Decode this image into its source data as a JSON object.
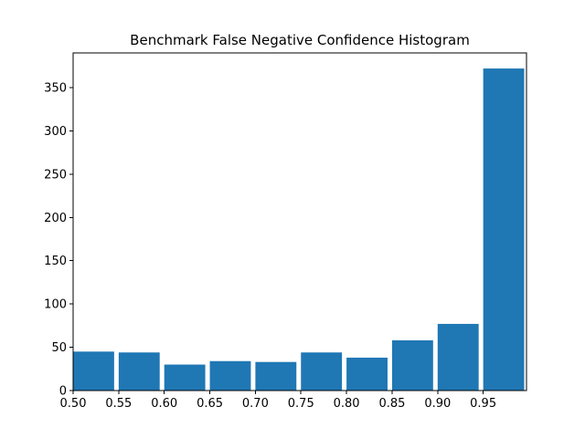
{
  "chart_data": {
    "type": "bar",
    "title": "Benchmark False Negative Confidence Histogram",
    "xlabel": "",
    "ylabel": "",
    "bins": [
      {
        "start": 0.5,
        "end": 0.55,
        "value": 45
      },
      {
        "start": 0.55,
        "end": 0.6,
        "value": 44
      },
      {
        "start": 0.6,
        "end": 0.65,
        "value": 30
      },
      {
        "start": 0.65,
        "end": 0.7,
        "value": 34
      },
      {
        "start": 0.7,
        "end": 0.75,
        "value": 33
      },
      {
        "start": 0.75,
        "end": 0.8,
        "value": 44
      },
      {
        "start": 0.8,
        "end": 0.85,
        "value": 38
      },
      {
        "start": 0.85,
        "end": 0.9,
        "value": 58
      },
      {
        "start": 0.9,
        "end": 0.95,
        "value": 77
      },
      {
        "start": 0.95,
        "end": 1.0,
        "value": 372
      }
    ],
    "bar_width_fraction": 0.9,
    "xlim": [
      0.5,
      0.9975
    ],
    "ylim": [
      0,
      390
    ],
    "xticks": [
      {
        "value": 0.5,
        "label": "0.50"
      },
      {
        "value": 0.55,
        "label": "0.55"
      },
      {
        "value": 0.6,
        "label": "0.60"
      },
      {
        "value": 0.65,
        "label": "0.65"
      },
      {
        "value": 0.7,
        "label": "0.70"
      },
      {
        "value": 0.75,
        "label": "0.75"
      },
      {
        "value": 0.8,
        "label": "0.80"
      },
      {
        "value": 0.85,
        "label": "0.85"
      },
      {
        "value": 0.9,
        "label": "0.90"
      },
      {
        "value": 0.95,
        "label": "0.95"
      }
    ],
    "yticks": [
      {
        "value": 0,
        "label": "0"
      },
      {
        "value": 50,
        "label": "50"
      },
      {
        "value": 100,
        "label": "100"
      },
      {
        "value": 150,
        "label": "150"
      },
      {
        "value": 200,
        "label": "200"
      },
      {
        "value": 250,
        "label": "250"
      },
      {
        "value": 300,
        "label": "300"
      },
      {
        "value": 350,
        "label": "350"
      }
    ],
    "grid": false,
    "legend": "none",
    "bar_color": "#1f77b4"
  }
}
